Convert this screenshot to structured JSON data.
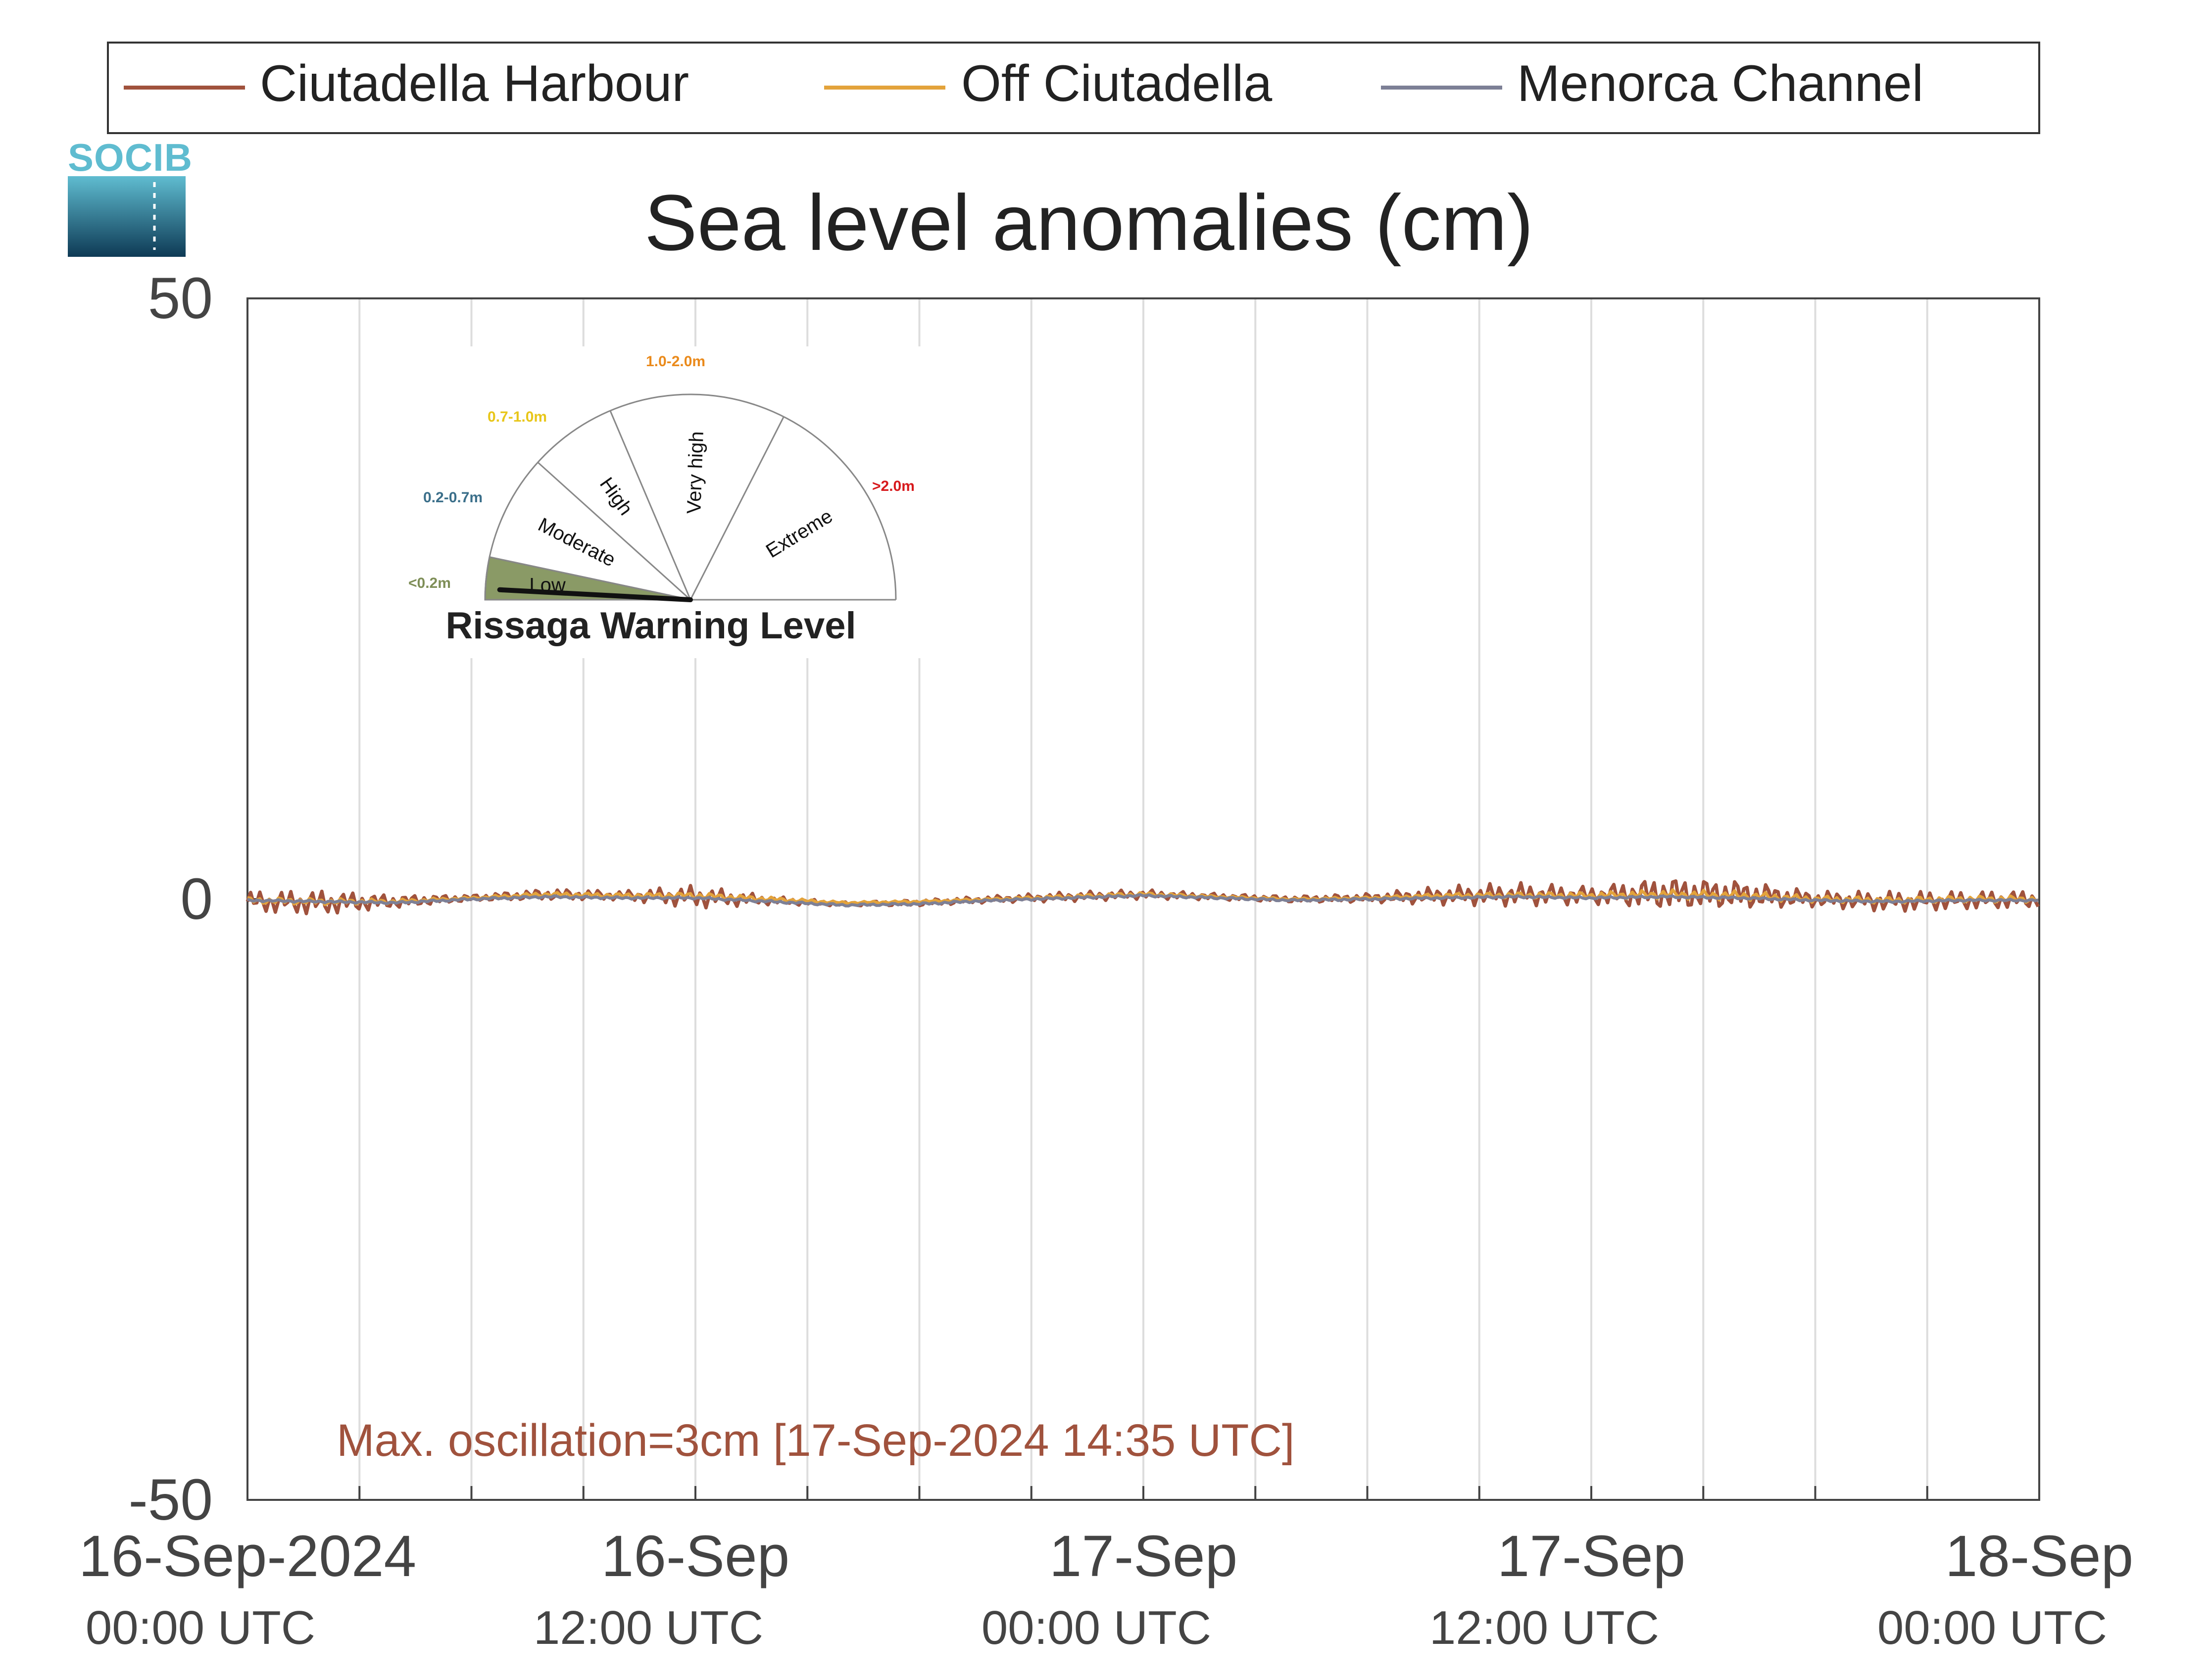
{
  "logo": {
    "text": "SOCIB"
  },
  "gauge": {
    "title": "Rissaga Warning Level",
    "levels": [
      {
        "name": "Low",
        "range": "<0.2m",
        "color": "#7e8e57"
      },
      {
        "name": "Moderate",
        "range": "0.2-0.7m",
        "color": "#3b6f8a"
      },
      {
        "name": "High",
        "range": "0.7-1.0m",
        "color": "#e8c619"
      },
      {
        "name": "Very high",
        "range": "1.0-2.0m",
        "color": "#ea8a1b"
      },
      {
        "name": "Extreme",
        "range": ">2.0m",
        "color": "#d7191c"
      }
    ],
    "active_level": "Low",
    "active_fill": "#8a9a66"
  },
  "annotation": {
    "text": "Max. oscillation=3cm [17-Sep-2024 14:35 UTC]",
    "color": "#a0523d"
  },
  "chart_data": {
    "type": "line",
    "title": "Sea level anomalies (cm)",
    "xlabel": "",
    "ylabel": "",
    "ylim": [
      -50,
      50
    ],
    "yticks": [
      -50,
      0,
      50
    ],
    "xlim_hours": [
      0,
      48
    ],
    "grid": "vertical",
    "legend_position": "top",
    "xticks": [
      {
        "hour": 0,
        "date": "16-Sep-2024",
        "time": "00:00 UTC"
      },
      {
        "hour": 12,
        "date": "16-Sep",
        "time": "12:00 UTC"
      },
      {
        "hour": 24,
        "date": "17-Sep",
        "time": "00:00 UTC"
      },
      {
        "hour": 36,
        "date": "17-Sep",
        "time": "12:00 UTC"
      },
      {
        "hour": 48,
        "date": "18-Sep",
        "time": "00:00 UTC"
      }
    ],
    "series": [
      {
        "name": "Ciutadella Harbour",
        "color": "#a0523d",
        "x_hours": [
          0,
          2,
          4,
          6,
          8,
          10,
          12,
          14,
          16,
          18,
          20,
          22,
          24,
          26,
          28,
          30,
          32,
          34,
          36,
          38,
          40,
          42,
          44,
          46,
          48
        ],
        "values": [
          -0.2,
          -0.3,
          -0.2,
          0.1,
          0.4,
          0.3,
          0.2,
          -0.1,
          -0.4,
          -0.3,
          0.0,
          0.2,
          0.4,
          0.2,
          0.0,
          0.1,
          0.3,
          0.4,
          0.3,
          0.5,
          0.4,
          0.0,
          -0.2,
          -0.1,
          0.0
        ],
        "osc_amp": [
          0.9,
          1.1,
          0.6,
          0.3,
          0.5,
          0.4,
          1.0,
          0.4,
          0.2,
          0.3,
          0.3,
          0.4,
          0.4,
          0.3,
          0.3,
          0.4,
          0.8,
          1.0,
          0.8,
          1.5,
          1.3,
          0.7,
          0.9,
          0.8,
          0.8
        ]
      },
      {
        "name": "Off Ciutadella",
        "color": "#e3a33b",
        "x_hours": [
          0,
          2,
          4,
          6,
          8,
          10,
          12,
          14,
          16,
          18,
          20,
          22,
          24,
          26,
          28,
          30,
          32,
          34,
          36,
          38,
          40,
          42,
          44,
          46,
          48
        ],
        "values": [
          -0.1,
          -0.2,
          -0.2,
          0.1,
          0.4,
          0.3,
          0.3,
          0.0,
          -0.3,
          -0.2,
          0.0,
          0.2,
          0.4,
          0.2,
          0.0,
          0.1,
          0.3,
          0.3,
          0.3,
          0.4,
          0.3,
          0.0,
          -0.1,
          0.0,
          0.0
        ],
        "osc_amp": [
          0.3,
          0.3,
          0.2,
          0.1,
          0.2,
          0.2,
          0.3,
          0.2,
          0.1,
          0.1,
          0.1,
          0.2,
          0.2,
          0.1,
          0.1,
          0.1,
          0.2,
          0.3,
          0.3,
          0.4,
          0.4,
          0.3,
          0.3,
          0.3,
          0.3
        ]
      },
      {
        "name": "Menorca Channel",
        "color": "#7d8096",
        "x_hours": [
          0,
          2,
          4,
          6,
          8,
          10,
          12,
          14,
          16,
          18,
          20,
          22,
          24,
          26,
          28,
          30,
          32,
          34,
          36,
          38,
          40,
          42,
          44,
          46,
          48
        ],
        "values": [
          -0.1,
          -0.2,
          -0.3,
          0.0,
          0.2,
          0.1,
          0.1,
          -0.2,
          -0.5,
          -0.4,
          -0.1,
          0.1,
          0.3,
          0.1,
          -0.1,
          0.0,
          0.1,
          0.2,
          0.1,
          0.2,
          0.1,
          -0.1,
          -0.2,
          -0.1,
          -0.1
        ],
        "osc_amp": [
          0.1,
          0.1,
          0.1,
          0.1,
          0.1,
          0.1,
          0.1,
          0.1,
          0.1,
          0.1,
          0.1,
          0.1,
          0.1,
          0.1,
          0.1,
          0.1,
          0.1,
          0.1,
          0.1,
          0.1,
          0.1,
          0.1,
          0.1,
          0.1,
          0.1
        ]
      }
    ]
  }
}
